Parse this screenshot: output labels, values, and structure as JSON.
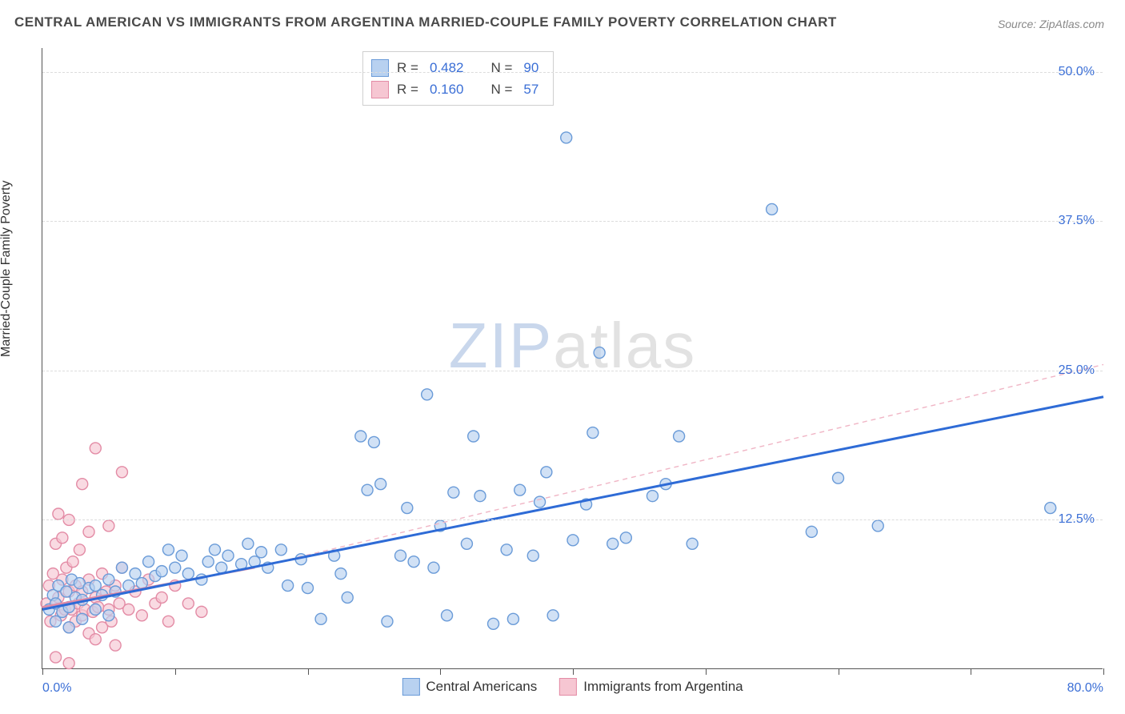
{
  "title": "CENTRAL AMERICAN VS IMMIGRANTS FROM ARGENTINA MARRIED-COUPLE FAMILY POVERTY CORRELATION CHART",
  "source": "Source: ZipAtlas.com",
  "y_axis_label": "Married-Couple Family Poverty",
  "watermark_zip": "ZIP",
  "watermark_atlas": "atlas",
  "chart": {
    "type": "scatter",
    "xlim": [
      0,
      80
    ],
    "ylim": [
      0,
      52
    ],
    "x_ticks": [
      0,
      10,
      20,
      30,
      40,
      50,
      60,
      70,
      80
    ],
    "x_tick_labels": {
      "0": "0.0%",
      "80": "80.0%"
    },
    "y_ticks": [
      12.5,
      25.0,
      37.5,
      50.0
    ],
    "y_tick_labels": [
      "12.5%",
      "25.0%",
      "37.5%",
      "50.0%"
    ],
    "grid_color": "#dcdcdc",
    "background_color": "#ffffff",
    "axis_color": "#555555",
    "tick_label_color": "#3b6fd6",
    "marker_radius": 7,
    "marker_stroke_width": 1.4,
    "series": [
      {
        "name": "Central Americans",
        "fill": "#b8d1f0",
        "stroke": "#6a9bd8",
        "fill_opacity": 0.65,
        "R": "0.482",
        "N": "90",
        "trend": {
          "x1": 0,
          "y1": 5.0,
          "x2": 80,
          "y2": 22.8,
          "color": "#2e6bd6",
          "width": 3,
          "dash": "none"
        },
        "points": [
          [
            0.5,
            5.0
          ],
          [
            0.8,
            6.2
          ],
          [
            1.0,
            5.5
          ],
          [
            1.2,
            7.0
          ],
          [
            1.5,
            4.8
          ],
          [
            1.8,
            6.5
          ],
          [
            2.0,
            5.2
          ],
          [
            2.2,
            7.5
          ],
          [
            2.5,
            6.0
          ],
          [
            2.8,
            7.2
          ],
          [
            3.0,
            5.8
          ],
          [
            3.5,
            6.8
          ],
          [
            4.0,
            7.0
          ],
          [
            4.5,
            6.2
          ],
          [
            5.0,
            7.5
          ],
          [
            5.5,
            6.5
          ],
          [
            6.0,
            8.5
          ],
          [
            6.5,
            7.0
          ],
          [
            7.0,
            8.0
          ],
          [
            7.5,
            7.2
          ],
          [
            8.0,
            9.0
          ],
          [
            8.5,
            7.8
          ],
          [
            9.0,
            8.2
          ],
          [
            9.5,
            10.0
          ],
          [
            10.0,
            8.5
          ],
          [
            10.5,
            9.5
          ],
          [
            11.0,
            8.0
          ],
          [
            12.0,
            7.5
          ],
          [
            12.5,
            9.0
          ],
          [
            13.0,
            10.0
          ],
          [
            13.5,
            8.5
          ],
          [
            14.0,
            9.5
          ],
          [
            15.0,
            8.8
          ],
          [
            15.5,
            10.5
          ],
          [
            16.0,
            9.0
          ],
          [
            16.5,
            9.8
          ],
          [
            17.0,
            8.5
          ],
          [
            18.0,
            10.0
          ],
          [
            18.5,
            7.0
          ],
          [
            19.5,
            9.2
          ],
          [
            20.0,
            6.8
          ],
          [
            21.0,
            4.2
          ],
          [
            22.0,
            9.5
          ],
          [
            22.5,
            8.0
          ],
          [
            23.0,
            6.0
          ],
          [
            24.0,
            19.5
          ],
          [
            24.5,
            15.0
          ],
          [
            25.0,
            19.0
          ],
          [
            25.5,
            15.5
          ],
          [
            26.0,
            4.0
          ],
          [
            27.0,
            9.5
          ],
          [
            27.5,
            13.5
          ],
          [
            28.0,
            9.0
          ],
          [
            29.0,
            23.0
          ],
          [
            29.5,
            8.5
          ],
          [
            30.0,
            12.0
          ],
          [
            30.5,
            4.5
          ],
          [
            31.0,
            14.8
          ],
          [
            32.0,
            10.5
          ],
          [
            32.5,
            19.5
          ],
          [
            33.0,
            14.5
          ],
          [
            34.0,
            3.8
          ],
          [
            35.0,
            10.0
          ],
          [
            35.5,
            4.2
          ],
          [
            36.0,
            15.0
          ],
          [
            37.0,
            9.5
          ],
          [
            37.5,
            14.0
          ],
          [
            38.0,
            16.5
          ],
          [
            38.5,
            4.5
          ],
          [
            39.5,
            44.5
          ],
          [
            40.0,
            10.8
          ],
          [
            41.0,
            13.8
          ],
          [
            41.5,
            19.8
          ],
          [
            42.0,
            26.5
          ],
          [
            43.0,
            10.5
          ],
          [
            44.0,
            11.0
          ],
          [
            46.0,
            14.5
          ],
          [
            47.0,
            15.5
          ],
          [
            48.0,
            19.5
          ],
          [
            49.0,
            10.5
          ],
          [
            55.0,
            38.5
          ],
          [
            58.0,
            11.5
          ],
          [
            60.0,
            16.0
          ],
          [
            63.0,
            12.0
          ],
          [
            76.0,
            13.5
          ],
          [
            1.0,
            4.0
          ],
          [
            2.0,
            3.5
          ],
          [
            3.0,
            4.2
          ],
          [
            4.0,
            5.0
          ],
          [
            5.0,
            4.5
          ]
        ]
      },
      {
        "name": "Immigrants from Argentina",
        "fill": "#f6c6d2",
        "stroke": "#e38ba5",
        "fill_opacity": 0.65,
        "R": "0.160",
        "N": "57",
        "trend_solid": {
          "x1": 0,
          "y1": 5.2,
          "x2": 16,
          "y2": 8.5,
          "color": "#e08ba5",
          "width": 2.5
        },
        "trend_dashed": {
          "x1": 16,
          "y1": 8.5,
          "x2": 80,
          "y2": 25.5,
          "color": "#f0b5c5",
          "width": 1.4,
          "dash": "6,5"
        },
        "points": [
          [
            0.3,
            5.5
          ],
          [
            0.5,
            7.0
          ],
          [
            0.6,
            4.0
          ],
          [
            0.8,
            8.0
          ],
          [
            1.0,
            5.5
          ],
          [
            1.0,
            10.5
          ],
          [
            1.2,
            6.0
          ],
          [
            1.2,
            13.0
          ],
          [
            1.4,
            4.5
          ],
          [
            1.5,
            7.5
          ],
          [
            1.5,
            11.0
          ],
          [
            1.7,
            5.0
          ],
          [
            1.8,
            8.5
          ],
          [
            2.0,
            3.5
          ],
          [
            2.0,
            6.5
          ],
          [
            2.0,
            12.5
          ],
          [
            2.2,
            5.0
          ],
          [
            2.3,
            9.0
          ],
          [
            2.5,
            4.0
          ],
          [
            2.5,
            7.0
          ],
          [
            2.7,
            5.5
          ],
          [
            2.8,
            10.0
          ],
          [
            3.0,
            4.5
          ],
          [
            3.0,
            6.5
          ],
          [
            3.0,
            15.5
          ],
          [
            3.2,
            5.0
          ],
          [
            3.5,
            3.0
          ],
          [
            3.5,
            7.5
          ],
          [
            3.5,
            11.5
          ],
          [
            3.8,
            4.8
          ],
          [
            4.0,
            6.0
          ],
          [
            4.0,
            2.5
          ],
          [
            4.0,
            18.5
          ],
          [
            4.2,
            5.2
          ],
          [
            4.5,
            8.0
          ],
          [
            4.5,
            3.5
          ],
          [
            4.8,
            6.5
          ],
          [
            5.0,
            5.0
          ],
          [
            5.0,
            12.0
          ],
          [
            5.2,
            4.0
          ],
          [
            5.5,
            7.0
          ],
          [
            5.5,
            2.0
          ],
          [
            5.8,
            5.5
          ],
          [
            6.0,
            8.5
          ],
          [
            6.0,
            16.5
          ],
          [
            6.5,
            5.0
          ],
          [
            7.0,
            6.5
          ],
          [
            7.5,
            4.5
          ],
          [
            8.0,
            7.5
          ],
          [
            8.5,
            5.5
          ],
          [
            9.0,
            6.0
          ],
          [
            9.5,
            4.0
          ],
          [
            10.0,
            7.0
          ],
          [
            11.0,
            5.5
          ],
          [
            12.0,
            4.8
          ],
          [
            1.0,
            1.0
          ],
          [
            2.0,
            0.5
          ]
        ]
      }
    ]
  },
  "legend": {
    "series1_label": "Central Americans",
    "series2_label": "Immigrants from Argentina"
  },
  "stats_box": {
    "r_label": "R =",
    "n_label": "N ="
  }
}
